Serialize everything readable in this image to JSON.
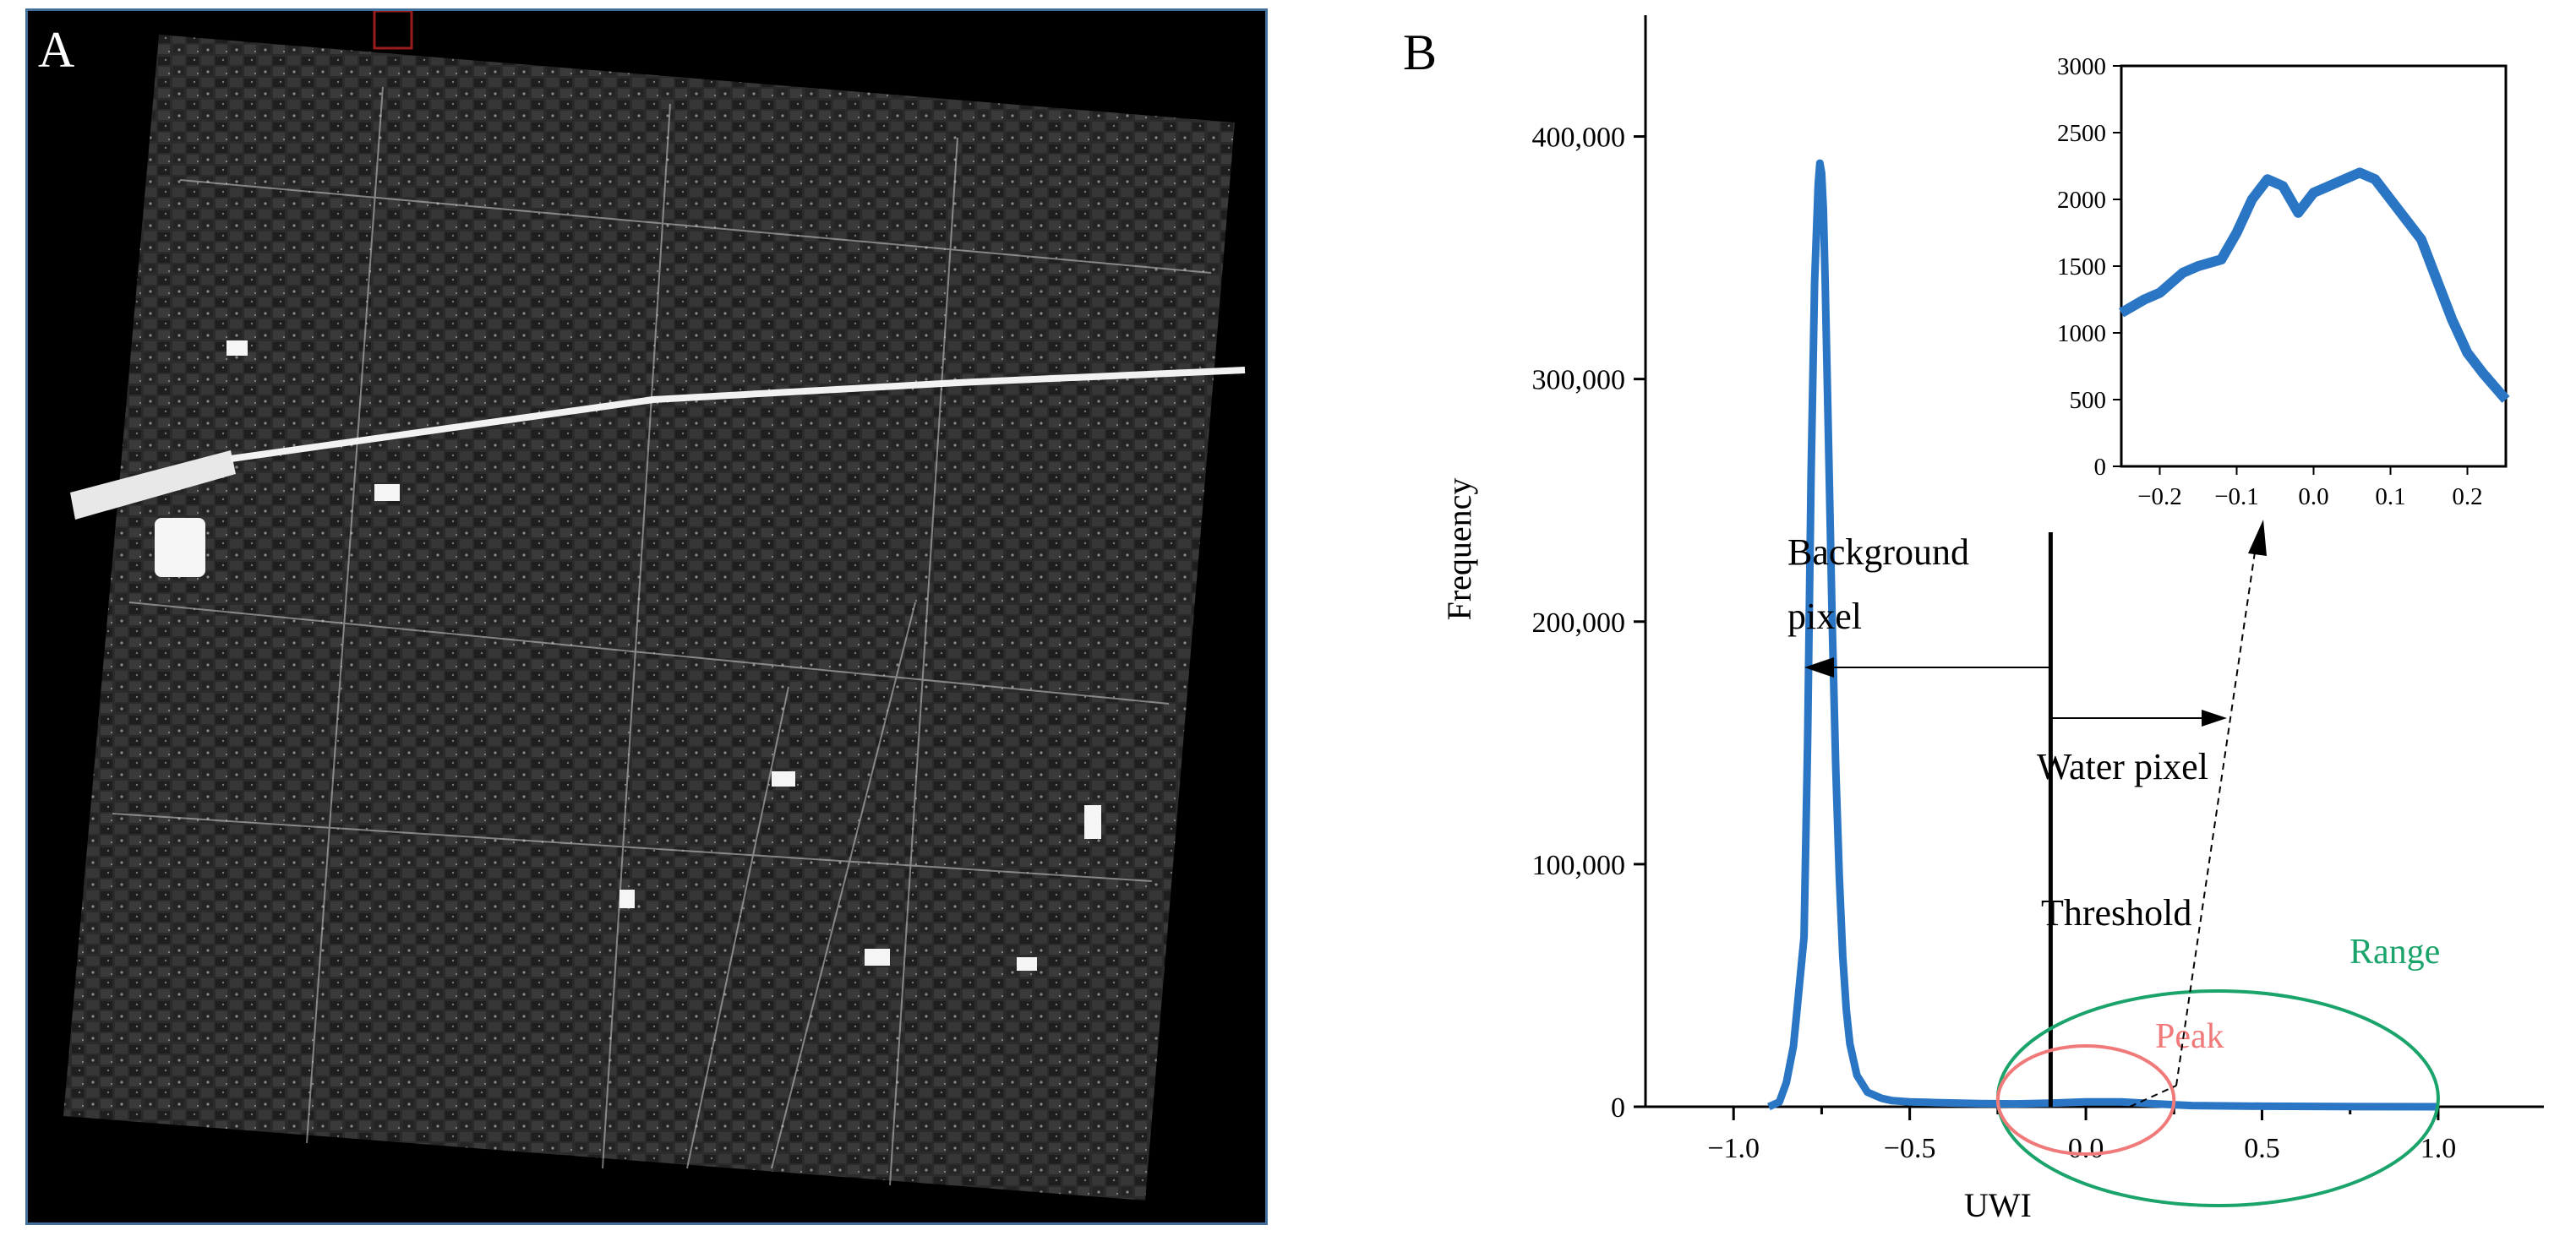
{
  "panel_a": {
    "letter": "A"
  },
  "panel_b": {
    "letter": "B"
  },
  "colors": {
    "series": "#2a76c4",
    "range": "#1aa36a",
    "peak": "#f07a7a",
    "frame": "#3f6f9a",
    "marker": "#9b1c1c"
  },
  "chart_data": [
    {
      "type": "line",
      "xlabel": "UWI",
      "ylabel": "Frequency",
      "xlim": [
        -1.25,
        1.3
      ],
      "ylim": [
        0,
        450000
      ],
      "x_ticks": [
        -1.0,
        -0.5,
        0.0,
        0.5,
        1.0
      ],
      "x_tick_labels": [
        "−1.0",
        "−0.5",
        "0.0",
        "0.5",
        "1.0"
      ],
      "y_ticks": [
        0,
        100000,
        200000,
        300000,
        400000
      ],
      "y_tick_labels": [
        "0",
        "100,000",
        "200,000",
        "300,000",
        "400,000"
      ],
      "grid": false,
      "series": [
        {
          "x": [
            -0.9,
            -0.87,
            -0.85,
            -0.83,
            -0.82,
            -0.8,
            -0.79,
            -0.78,
            -0.77,
            -0.76,
            -0.755,
            -0.75,
            -0.745,
            -0.74,
            -0.73,
            -0.72,
            -0.71,
            -0.7,
            -0.69,
            -0.68,
            -0.67,
            -0.65,
            -0.62,
            -0.58,
            -0.55,
            -0.5,
            -0.45,
            -0.4,
            -0.3,
            -0.2,
            -0.1,
            0.0,
            0.1,
            0.2,
            0.3,
            0.5,
            0.8,
            1.0
          ],
          "y": [
            0,
            2000,
            10000,
            25000,
            40000,
            70000,
            150000,
            260000,
            340000,
            380000,
            389000,
            385000,
            370000,
            340000,
            270000,
            200000,
            140000,
            95000,
            62000,
            40000,
            26000,
            13000,
            6000,
            3500,
            2500,
            2000,
            1800,
            1600,
            1300,
            1200,
            1500,
            2000,
            2000,
            1200,
            500,
            200,
            50,
            0
          ]
        }
      ],
      "annotations": {
        "threshold_x": -0.1,
        "background_label": "Background pixel",
        "water_label": "Water pixel",
        "threshold_label": "Threshold",
        "range_label": "Range",
        "peak_label": "Peak",
        "range_span": [
          -0.25,
          1.0
        ],
        "peak_span": [
          -0.25,
          0.25
        ]
      }
    },
    {
      "type": "line",
      "xlim": [
        -0.25,
        0.25
      ],
      "ylim": [
        0,
        3000
      ],
      "x_ticks": [
        -0.2,
        -0.1,
        0.0,
        0.1,
        0.2
      ],
      "x_tick_labels": [
        "−0.2",
        "−0.1",
        "0.0",
        "0.1",
        "0.2"
      ],
      "y_ticks": [
        0,
        500,
        1000,
        1500,
        2000,
        2500,
        3000
      ],
      "y_tick_labels": [
        "0",
        "500",
        "1000",
        "1500",
        "2000",
        "2500",
        "3000"
      ],
      "grid": false,
      "series": [
        {
          "x": [
            -0.25,
            -0.22,
            -0.2,
            -0.17,
            -0.15,
            -0.12,
            -0.1,
            -0.08,
            -0.06,
            -0.04,
            -0.02,
            0.0,
            0.02,
            0.04,
            0.06,
            0.08,
            0.1,
            0.12,
            0.14,
            0.16,
            0.18,
            0.2,
            0.22,
            0.25
          ],
          "y": [
            1150,
            1250,
            1300,
            1450,
            1500,
            1550,
            1750,
            2000,
            2150,
            2100,
            1900,
            2050,
            2100,
            2150,
            2200,
            2150,
            2000,
            1850,
            1700,
            1400,
            1100,
            850,
            700,
            500
          ]
        }
      ]
    }
  ]
}
